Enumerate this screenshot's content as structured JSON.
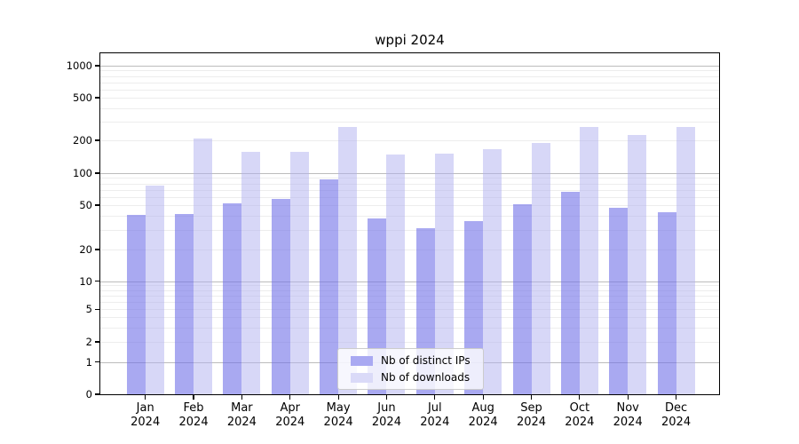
{
  "chart_data": {
    "type": "bar",
    "title": "wppi 2024",
    "categories": [
      "Jan",
      "Feb",
      "Mar",
      "Apr",
      "May",
      "Jun",
      "Jul",
      "Aug",
      "Sep",
      "Oct",
      "Nov",
      "Dec"
    ],
    "category_year": "2024",
    "series": [
      {
        "name": "Nb of distinct IPs",
        "color": "#a9a9f2",
        "fill": "rgba(112,112,232,0.6)",
        "values": [
          41,
          42,
          52,
          57,
          87,
          38,
          31,
          36,
          51,
          67,
          47,
          43
        ]
      },
      {
        "name": "Nb of downloads",
        "color": "#dadaf8",
        "fill": "rgba(176,176,240,0.5)",
        "values": [
          76,
          207,
          157,
          156,
          264,
          148,
          152,
          165,
          190,
          268,
          223,
          268
        ]
      }
    ],
    "y_ticks": [
      0,
      1,
      2,
      5,
      10,
      20,
      50,
      100,
      200,
      500,
      1000
    ],
    "ylim": [
      0,
      1400
    ],
    "scale": "log",
    "grid": true,
    "legend_position": "lower center"
  }
}
